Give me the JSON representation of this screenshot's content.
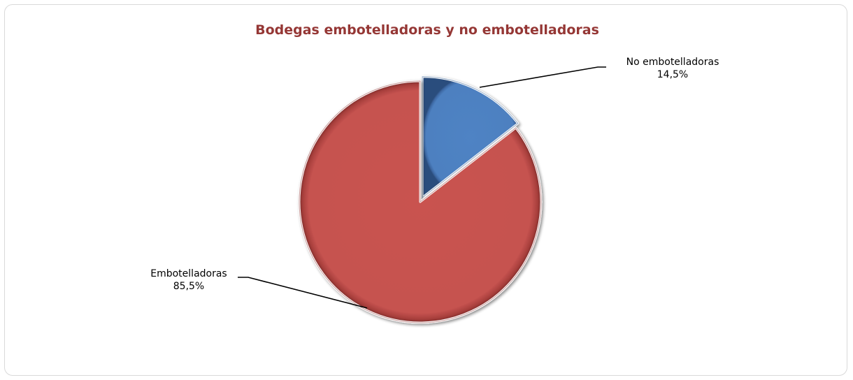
{
  "chart_data": {
    "type": "pie",
    "title": "Bodegas embotelladoras y no embotelladoras",
    "slices": [
      {
        "name": "No embotelladoras",
        "value": 14.5,
        "value_label": "14,5%",
        "color": "#4f81bd",
        "exploded": true
      },
      {
        "name": "Embotelladoras",
        "value": 85.5,
        "value_label": "85,5%",
        "color": "#c0504d",
        "exploded": false
      }
    ],
    "start_angle": "12 o'clock, clockwise",
    "legend": "none",
    "data_labels": "outside with leader lines"
  }
}
